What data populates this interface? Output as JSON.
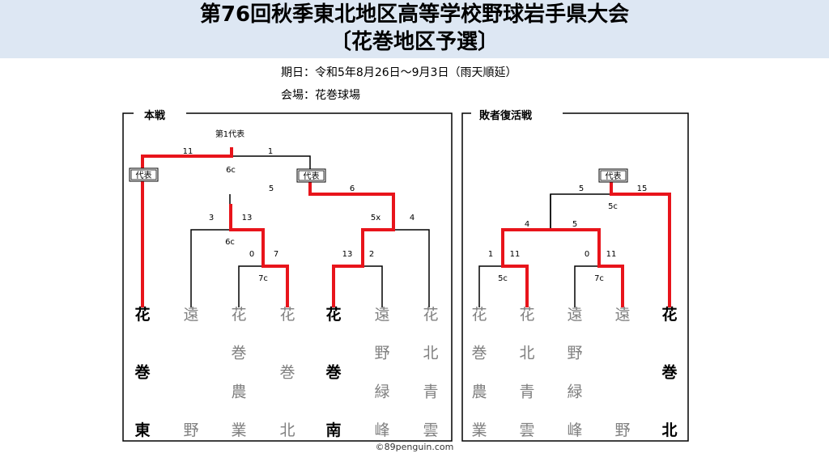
{
  "header": {
    "title_line1": "第76回秋季東北地区高等学校野球岩手県大会",
    "title_line2": "〔花巻地区予選〕",
    "date": "期日：令和5年8月26日～9月3日（雨天順延）",
    "venue": "会場：花巻球場"
  },
  "main_bracket": {
    "label": "本戦",
    "top_note": "第1代表",
    "rep_badge": "代表",
    "teams": [
      {
        "name": "花巻東",
        "winner": true
      },
      {
        "name": "遠野",
        "winner": false
      },
      {
        "name": "花巻農業",
        "winner": false
      },
      {
        "name": "花巻北",
        "winner": false
      },
      {
        "name": "花巻南",
        "winner": true
      },
      {
        "name": "遠野緑峰",
        "winner": false
      },
      {
        "name": "花北青雲",
        "winner": false
      }
    ],
    "scores": {
      "r1a_left": "0",
      "r1a_right": "7",
      "r1a_note": "7c",
      "r1b_left": "13",
      "r1b_right": "2",
      "r2a_left": "3",
      "r2a_right": "13",
      "r2a_note": "6c",
      "r2b_left": "5x",
      "r2b_right": "4",
      "semi_left": "5",
      "semi_right": "6",
      "final_left": "11",
      "final_right": "1",
      "final_note": "6c"
    }
  },
  "losers_bracket": {
    "label": "敗者復活戦",
    "rep_badge": "代表",
    "teams": [
      {
        "name": "花巻農業",
        "winner": false
      },
      {
        "name": "花北青雲",
        "winner": false
      },
      {
        "name": "遠野緑峰",
        "winner": false
      },
      {
        "name": "遠野",
        "winner": false
      },
      {
        "name": "花巻北",
        "winner": true
      }
    ],
    "scores": {
      "r1a_left": "1",
      "r1a_right": "11",
      "r1a_note": "5c",
      "r1b_left": "0",
      "r1b_right": "11",
      "r1b_note": "7c",
      "semi_left": "4",
      "semi_right": "5",
      "final_left": "5",
      "final_right": "15",
      "final_note": "5c"
    }
  },
  "copyright": "©89penguin.com",
  "colors": {
    "winner_line": "#e8141b",
    "banner": "#dde7f3",
    "loser_text": "#808080"
  }
}
